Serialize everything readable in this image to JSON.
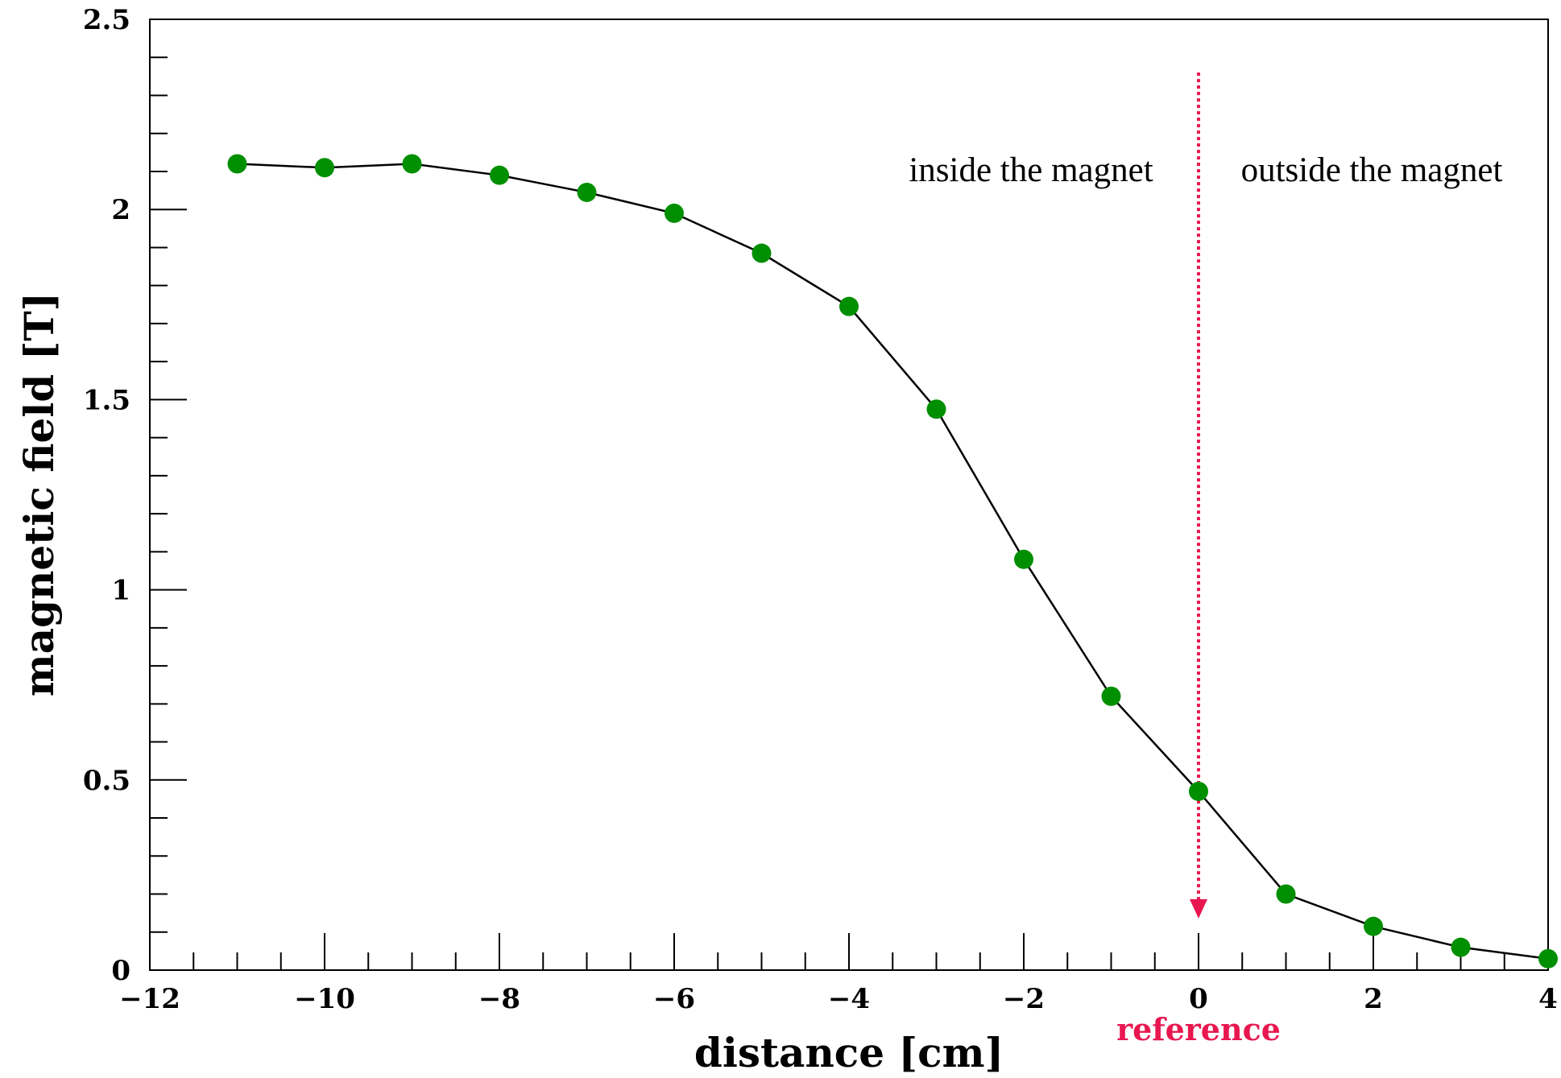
{
  "colors": {
    "marker": "#008f00",
    "line": "#000000",
    "reference": "#e8174f"
  },
  "chart_data": {
    "type": "line",
    "xlabel": "distance [cm]",
    "ylabel": "magnetic field [T]",
    "xlim": [
      -12,
      4
    ],
    "ylim": [
      0,
      2.5
    ],
    "xticks": [
      -12,
      -10,
      -8,
      -6,
      -4,
      -2,
      0,
      2,
      4
    ],
    "xtick_labels": [
      "−12",
      "−10",
      "−8",
      "−6",
      "−4",
      "−2",
      "0",
      "2",
      "4"
    ],
    "yticks": [
      0,
      0.5,
      1,
      1.5,
      2,
      2.5
    ],
    "ytick_labels": [
      "0",
      "0.5",
      "1",
      "1.5",
      "2",
      "2.5"
    ],
    "x_minor_step": 0.5,
    "y_minor_step": 0.1,
    "grid": false,
    "series": [
      {
        "x": [
          -11,
          -10,
          -9,
          -8,
          -7,
          -6,
          -5,
          -4,
          -3,
          -2,
          -1,
          0,
          1,
          2,
          3,
          4
        ],
        "y": [
          2.12,
          2.11,
          2.12,
          2.09,
          2.045,
          1.99,
          1.885,
          1.745,
          1.475,
          1.08,
          0.72,
          0.47,
          0.2,
          0.115,
          0.06,
          0.03
        ]
      }
    ],
    "annotations": {
      "inside": "inside the magnet",
      "outside": "outside the magnet",
      "reference": {
        "label": "reference",
        "x": 0,
        "y_from": 2.36,
        "y_to": 0.14
      }
    }
  }
}
